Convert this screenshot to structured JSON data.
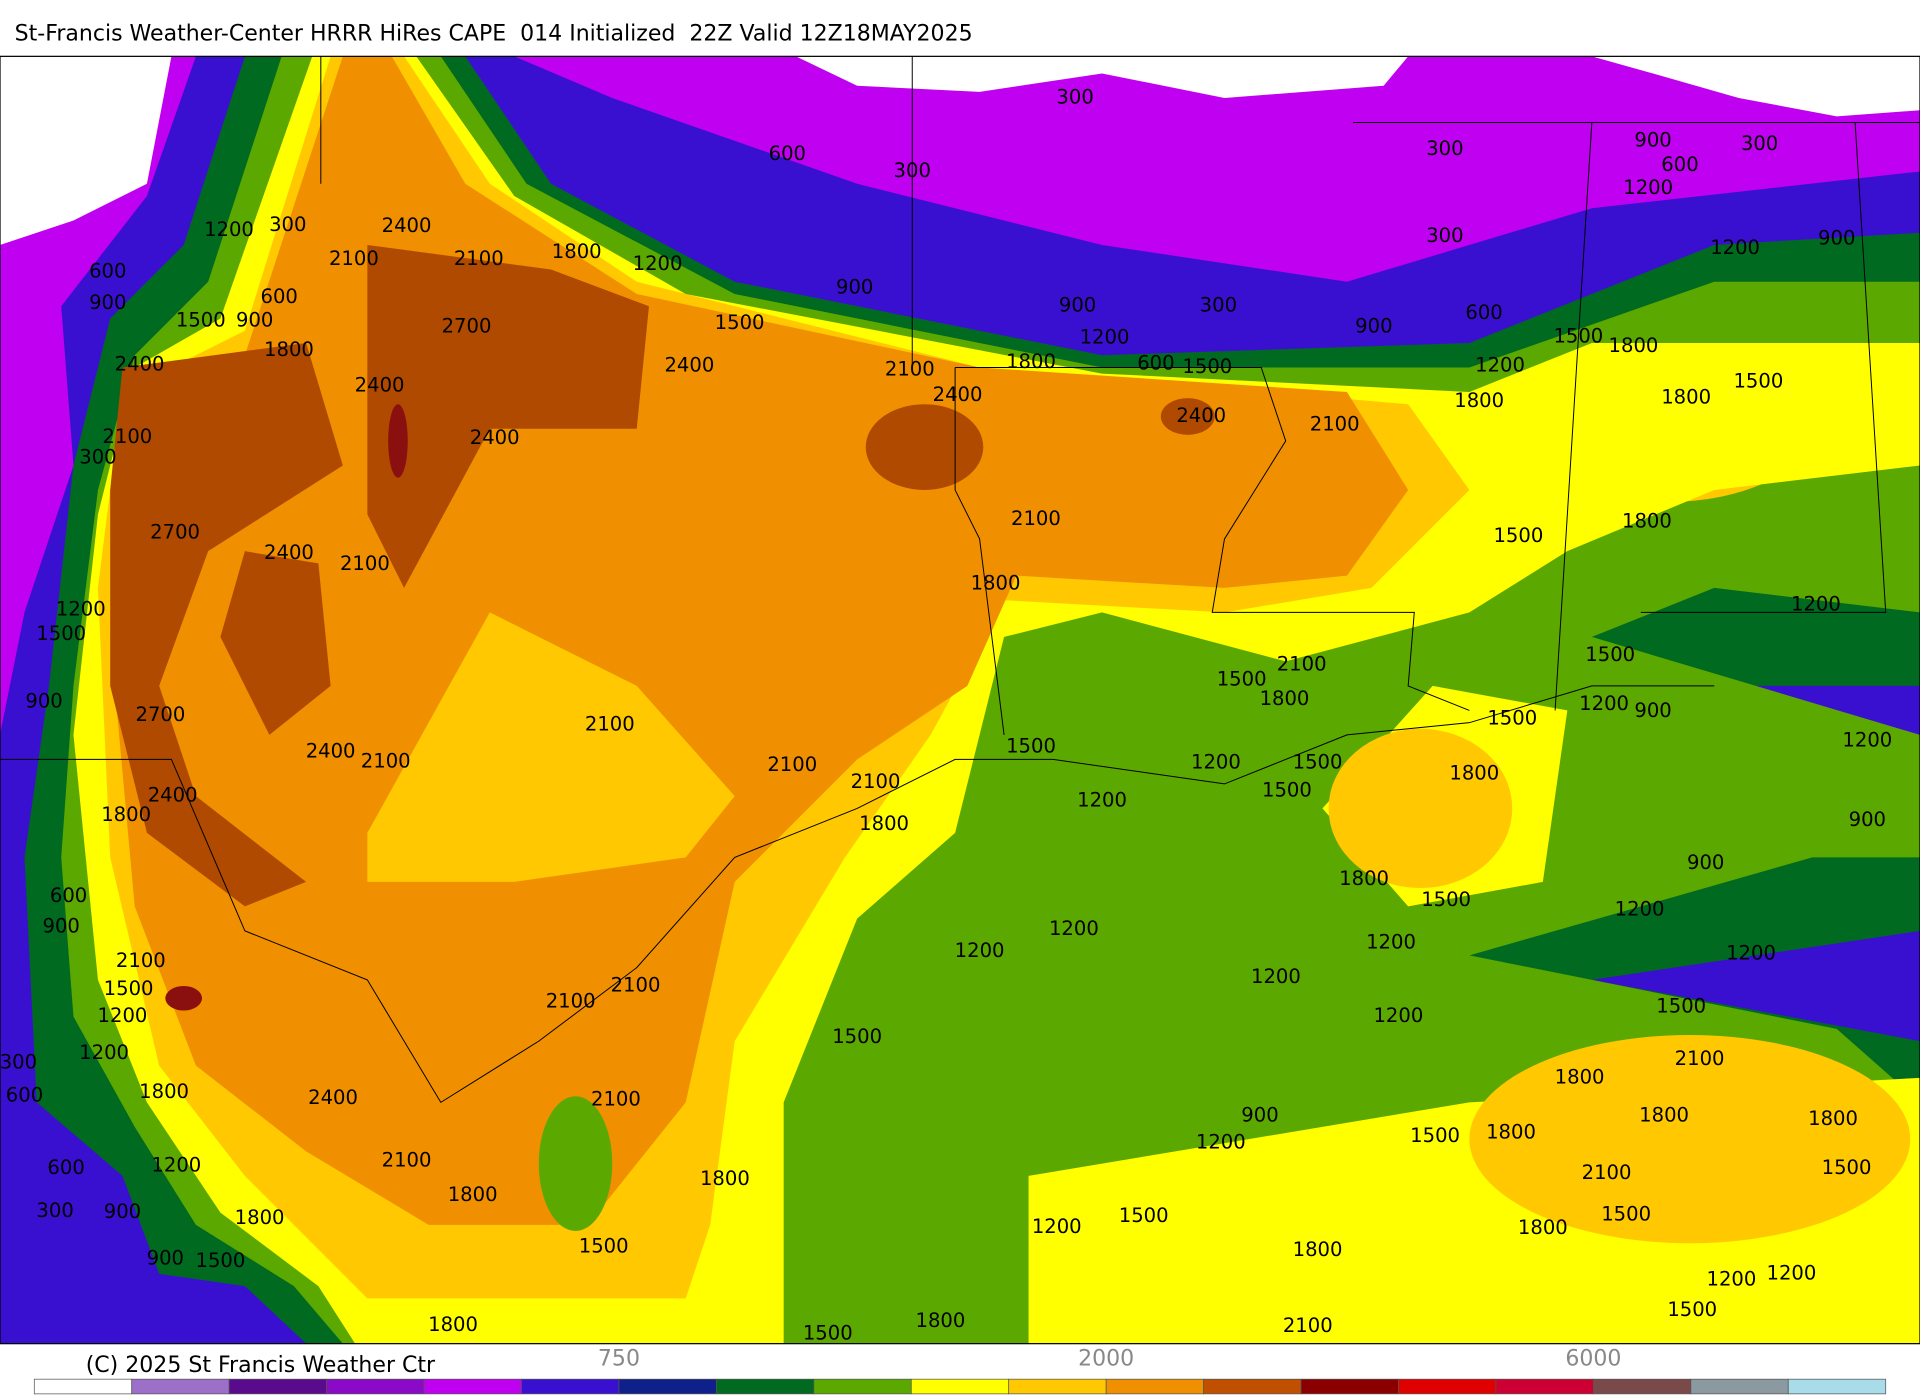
{
  "header": {
    "title": "St-Francis Weather-Center HRRR HiRes CAPE  014 Initialized  22Z Valid 12Z18MAY2025"
  },
  "footer": {
    "copyright": "(C) 2025 St Francis Weather Ctr"
  },
  "colorbar": {
    "colors": [
      "#ffffff",
      "#9c6fc8",
      "#5a0a8c",
      "#8a0ac8",
      "#c000f0",
      "#3a10d0",
      "#10208a",
      "#006a20",
      "#5aa800",
      "#ffff00",
      "#ffc800",
      "#f09000",
      "#c05000",
      "#8a0000",
      "#e00000",
      "#cc0033",
      "#7a4a4a",
      "#8a9aa0",
      "#a8dce8"
    ],
    "ticks": [
      750,
      2000,
      6000
    ]
  },
  "contour_labels": [
    300,
    600,
    300,
    300,
    900,
    600,
    300,
    1200,
    2400,
    2100,
    2100,
    1800,
    1200,
    900,
    300,
    1200,
    900,
    1200,
    300,
    600,
    900,
    1500,
    900,
    600,
    1800,
    2700,
    1500,
    900,
    1200,
    300,
    900,
    600,
    1500,
    1800,
    2400,
    2400,
    2400,
    2100,
    2400,
    1800,
    600,
    1500,
    1200,
    1800,
    1800,
    1500,
    2100,
    300,
    2400,
    2400,
    2100,
    2700,
    2400,
    2100,
    2100,
    1500,
    1800,
    1800,
    1200,
    1500,
    1200,
    900,
    2700,
    2400,
    2100,
    2100,
    2100,
    2100,
    1800,
    1500,
    1500,
    1800,
    2100,
    1500,
    1200,
    900,
    1500,
    1200,
    1200,
    1500,
    1500,
    1800,
    1200,
    2400,
    1800,
    900,
    1800,
    1500,
    900,
    1200,
    600,
    900,
    2100,
    1500,
    1200,
    1200,
    300,
    600,
    1200,
    1200,
    1200,
    1200,
    1200,
    1500,
    1200,
    2100,
    2100,
    1500,
    2100,
    1800,
    1800,
    1800,
    1800,
    2400,
    2100,
    900,
    1200,
    1500,
    1800,
    2100,
    1500,
    600,
    1200,
    2100,
    1800,
    1800,
    300,
    900,
    1800,
    1200,
    1500,
    1800,
    1800,
    1500,
    900,
    1500,
    1500,
    1200,
    1200,
    1500,
    1800,
    1500,
    1800,
    2100
  ]
}
